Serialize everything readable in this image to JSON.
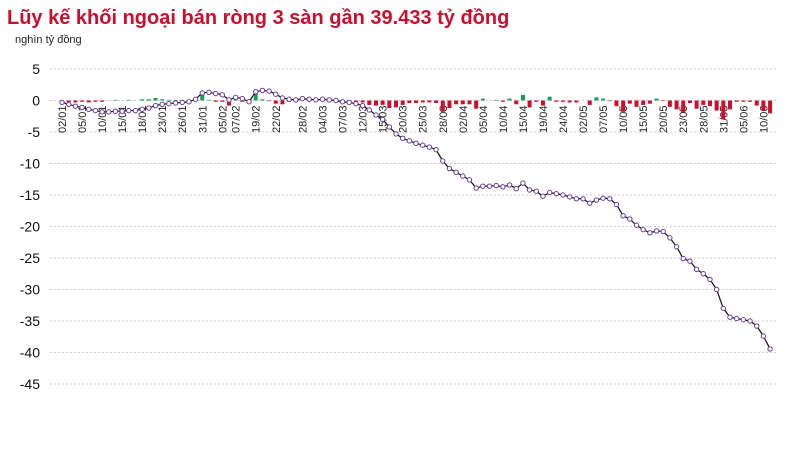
{
  "chart_data": {
    "type": "bar-line",
    "title": "Lũy kế khối ngoại bán ròng 3 sàn gần 39.433 tỷ đồng",
    "subtitle": "nghìn tỷ đồng",
    "categories": [
      "02/01",
      null,
      null,
      "05/01",
      null,
      null,
      "10/01",
      null,
      null,
      "15/01",
      null,
      null,
      "18/01",
      null,
      null,
      "23/01",
      null,
      null,
      "26/01",
      null,
      null,
      "31/01",
      null,
      null,
      "05/02",
      null,
      "07/02",
      null,
      null,
      "19/02",
      null,
      null,
      "22/02",
      null,
      null,
      null,
      "28/02",
      null,
      null,
      "04/03",
      null,
      null,
      "07/03",
      null,
      null,
      "12/03",
      null,
      null,
      "15/03",
      null,
      null,
      "20/03",
      null,
      null,
      "25/03",
      null,
      null,
      "28/03",
      null,
      null,
      "02/04",
      null,
      null,
      "05/04",
      null,
      null,
      "10/04",
      null,
      null,
      "15/04",
      null,
      null,
      "19/04",
      null,
      null,
      "24/04",
      null,
      null,
      "02/05",
      null,
      null,
      "07/05",
      null,
      null,
      "10/05",
      null,
      null,
      "15/05",
      null,
      null,
      "20/05",
      null,
      null,
      "23/05",
      null,
      null,
      "28/05",
      null,
      null,
      "31/05",
      null,
      null,
      "05/06",
      null,
      null,
      "10/06",
      null
    ],
    "series": [
      {
        "kind": "bar",
        "positive_color": "#1a9e5a",
        "negative_color": "#c8102e",
        "values": [
          -0.3,
          -0.3,
          -0.3,
          -0.2,
          -0.3,
          -0.2,
          -0.2,
          0,
          0.1,
          0,
          0.1,
          0,
          0.2,
          0.2,
          0.4,
          0.2,
          0.1,
          0.1,
          0.1,
          0.1,
          0.4,
          1.0,
          0.1,
          -0.2,
          -0.2,
          -0.8,
          0.4,
          -0.2,
          -0.5,
          1.6,
          0.2,
          -0.1,
          -0.5,
          -0.6,
          -0.2,
          -0.1,
          0.2,
          -0.1,
          -0.1,
          0.1,
          -0.1,
          -0.1,
          -0.2,
          -0.1,
          -0.2,
          -0.3,
          -0.7,
          -0.8,
          -0.7,
          -1.2,
          -1.1,
          -0.7,
          -0.4,
          -0.4,
          -0.3,
          -0.3,
          -0.4,
          -1.8,
          -1.2,
          -0.6,
          -0.6,
          -0.6,
          -1.3,
          0.3,
          0,
          0.1,
          -0.2,
          0.3,
          -0.6,
          0.9,
          -1.1,
          -0.2,
          -0.8,
          0.6,
          -0.2,
          -0.2,
          -0.3,
          -0.3,
          0,
          -0.7,
          0.5,
          0.3,
          -0.1,
          -0.9,
          -1.8,
          -0.5,
          -1.0,
          -0.7,
          -0.5,
          0.3,
          -0.1,
          -1.0,
          -1.4,
          -1.9,
          -0.4,
          -1.3,
          -0.7,
          -0.9,
          -1.6,
          -3.0,
          -1.4,
          -0.2,
          -0.2,
          -0.2,
          -0.8,
          -1.6,
          -2.033
        ]
      },
      {
        "kind": "line",
        "color": "#111111",
        "marker_color": "#6a3d9a",
        "values": [
          -0.3,
          -0.6,
          -0.9,
          -1.1,
          -1.4,
          -1.6,
          -1.8,
          -1.8,
          -1.7,
          -1.7,
          -1.6,
          -1.6,
          -1.4,
          -1.2,
          -0.8,
          -0.6,
          -0.5,
          -0.4,
          -0.3,
          -0.2,
          0.2,
          1.2,
          1.3,
          1.1,
          0.9,
          0.1,
          0.5,
          0.3,
          -0.2,
          1.4,
          1.6,
          1.5,
          1.0,
          0.4,
          0.2,
          0.1,
          0.3,
          0.2,
          0.1,
          0.2,
          0.1,
          0.0,
          -0.2,
          -0.3,
          -0.5,
          -0.8,
          -1.5,
          -2.3,
          -3.0,
          -4.2,
          -5.3,
          -6.0,
          -6.4,
          -6.8,
          -7.1,
          -7.4,
          -7.8,
          -9.6,
          -10.8,
          -11.4,
          -12.0,
          -12.6,
          -13.9,
          -13.6,
          -13.6,
          -13.5,
          -13.7,
          -13.4,
          -14.0,
          -13.1,
          -14.2,
          -14.4,
          -15.2,
          -14.6,
          -14.8,
          -15.0,
          -15.3,
          -15.6,
          -15.6,
          -16.3,
          -15.8,
          -15.5,
          -15.6,
          -16.5,
          -18.3,
          -18.8,
          -19.8,
          -20.5,
          -21.0,
          -20.7,
          -20.8,
          -21.8,
          -23.2,
          -25.1,
          -25.5,
          -26.8,
          -27.5,
          -28.4,
          -30.0,
          -33.0,
          -34.4,
          -34.6,
          -34.8,
          -35.0,
          -35.8,
          -37.4,
          -39.433
        ]
      }
    ],
    "ylim": [
      -45,
      5
    ],
    "yticks": [
      5,
      0,
      -5,
      -10,
      -15,
      -20,
      -25,
      -30,
      -35,
      -40,
      -45
    ],
    "grid": true
  }
}
